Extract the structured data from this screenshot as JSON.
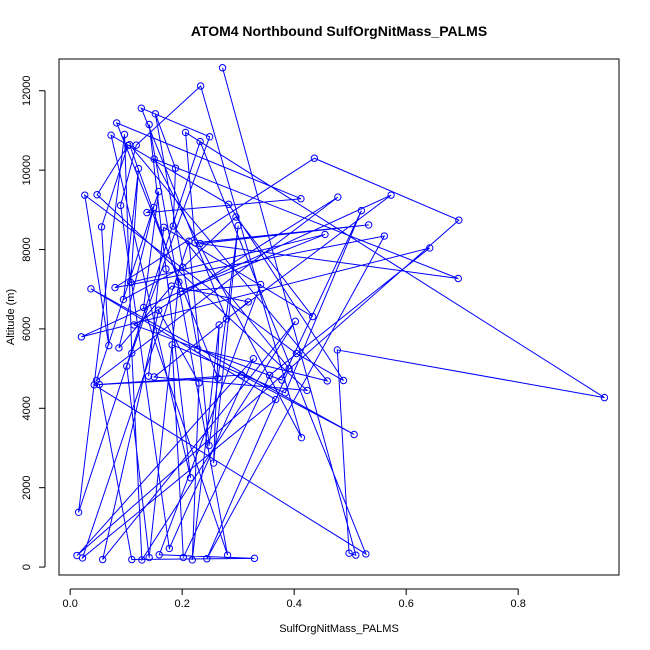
{
  "chart_data": {
    "type": "scatter",
    "title": "ATOM4 Northbound SulfOrgNitMass_PALMS",
    "xlabel": "SulfOrgNitMass_PALMS",
    "ylabel": "Altitude (m)",
    "xlim": [
      -0.02,
      0.98
    ],
    "ylim": [
      -200,
      12800
    ],
    "x_ticks": [
      0.0,
      0.2,
      0.4,
      0.6,
      0.8
    ],
    "y_ticks": [
      0,
      2000,
      4000,
      6000,
      8000,
      10000,
      12000
    ],
    "x_tick_labels": [
      "0.0",
      "0.2",
      "0.4",
      "0.6",
      "0.8"
    ],
    "y_tick_labels": [
      "0",
      "2000",
      "4000",
      "6000",
      "8000",
      "10000",
      "12000"
    ],
    "grid": false,
    "series": [
      {
        "color": "#0000ff",
        "marker": "open-circle",
        "x": [
          0.272,
          0.52,
          0.478,
          0.233,
          0.106,
          0.158,
          0.188,
          0.232,
          0.206,
          0.152,
          0.141,
          0.127,
          0.103,
          0.097,
          0.083,
          0.073,
          0.037,
          0.026,
          0.048,
          0.056,
          0.043,
          0.02,
          0.022,
          0.047,
          0.058,
          0.069,
          0.052,
          0.087,
          0.101,
          0.11,
          0.114,
          0.131,
          0.14,
          0.15,
          0.158,
          0.171,
          0.182,
          0.194,
          0.212,
          0.228,
          0.249,
          0.264,
          0.279,
          0.306,
          0.327,
          0.356,
          0.378,
          0.391,
          0.404,
          0.413,
          0.433,
          0.459,
          0.477,
          0.498,
          0.51,
          0.533,
          0.561,
          0.573,
          0.642,
          0.694,
          0.693,
          0.954,
          0.436,
          0.412,
          0.34,
          0.318,
          0.3,
          0.283,
          0.266,
          0.248,
          0.23,
          0.215,
          0.197,
          0.181,
          0.167,
          0.149,
          0.137,
          0.122,
          0.108,
          0.095,
          0.015,
          0.11,
          0.128,
          0.141,
          0.159,
          0.177,
          0.202,
          0.218,
          0.244,
          0.256,
          0.281,
          0.296,
          0.329,
          0.367,
          0.384,
          0.402,
          0.423,
          0.455,
          0.488,
          0.507,
          0.528,
          0.012,
          0.184,
          0.201,
          0.223,
          0.15,
          0.118,
          0.09,
          0.08,
          0.232
        ],
        "y": [
          12580,
          8980,
          9320,
          12120,
          10640,
          9460,
          10050,
          10720,
          10950,
          11420,
          11150,
          11560,
          10620,
          10900,
          11190,
          10880,
          7010,
          9370,
          9380,
          8570,
          4590,
          5800,
          230,
          4700,
          190,
          5580,
          4600,
          5520,
          5060,
          5390,
          6100,
          6540,
          4810,
          4790,
          6470,
          7510,
          5600,
          7180,
          8210,
          5490,
          10840,
          4760,
          6250,
          4840,
          5250,
          4830,
          4710,
          5000,
          5380,
          3260,
          6310,
          4690,
          5470,
          350,
          300,
          8620,
          8340,
          9370,
          8040,
          8740,
          7270,
          4270,
          10300,
          9280,
          7120,
          6680,
          8600,
          9140,
          6100,
          3060,
          4640,
          2250,
          6940,
          7080,
          8560,
          9060,
          8930,
          10040,
          7170,
          6740,
          1380,
          190,
          180,
          240,
          310,
          470,
          240,
          180,
          210,
          2620,
          300,
          8820,
          220,
          4220,
          4390,
          6190,
          4450,
          8380,
          4700,
          3340,
          330,
          290,
          8590,
          7550,
          8170,
          10280,
          10630,
          9110,
          7040,
          8150
        ],
        "path_order": [
          0,
          54,
          53,
          52,
          61,
          8,
          104,
          55,
          109,
          60,
          105,
          49,
          3,
          106,
          107,
          85,
          44,
          101,
          59,
          62,
          108,
          56,
          88,
          47,
          102,
          6,
          9,
          39,
          51,
          4,
          37,
          83,
          28,
          40,
          11,
          42,
          57,
          21,
          58,
          45,
          86,
          36,
          94,
          1,
          46,
          30,
          2,
          23,
          5,
          31,
          90,
          10,
          35,
          71,
          15,
          67,
          98,
          48,
          17,
          25,
          19,
          12,
          18,
          96,
          33,
          65,
          73,
          27,
          75,
          76,
          63,
          14,
          41,
          20,
          100,
          7,
          80,
          13,
          29,
          82,
          95,
          24,
          34,
          70,
          87,
          68,
          89,
          66,
          69,
          38,
          22,
          93,
          16,
          99,
          43,
          26,
          81,
          92,
          84,
          64,
          72,
          97,
          78,
          77,
          79,
          103,
          91,
          50,
          74,
          32
        ]
      }
    ]
  }
}
